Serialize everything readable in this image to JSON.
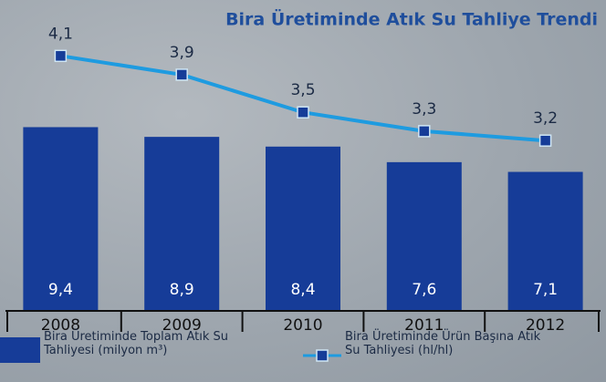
{
  "chart_data": {
    "type": "bar_line",
    "title": "Bira Üretiminde Atık Su Tahliye Trendi",
    "categories": [
      "2008",
      "2009",
      "2010",
      "2011",
      "2012"
    ],
    "series": [
      {
        "name": "Bira Üretiminde Toplam Atık Su Tahliyesi (milyon m³)",
        "type": "bar",
        "color": "#163c98",
        "values": [
          9.4,
          8.9,
          8.4,
          7.6,
          7.1
        ],
        "value_labels": [
          "9,4",
          "8,9",
          "8,4",
          "7,6",
          "7,1"
        ]
      },
      {
        "name": "Bira Üretiminde Ürün Başına Atık Su Tahliyesi (hl/hl)",
        "type": "line",
        "axis": "y2",
        "color": "#1e9be0",
        "values": [
          4.1,
          3.9,
          3.5,
          3.3,
          3.2
        ],
        "value_labels": [
          "4,1",
          "3,9",
          "3,5",
          "3,3",
          "3,2"
        ]
      }
    ],
    "ylim": [
      0,
      15
    ],
    "y2lim": [
      1.4,
      4.5
    ]
  }
}
